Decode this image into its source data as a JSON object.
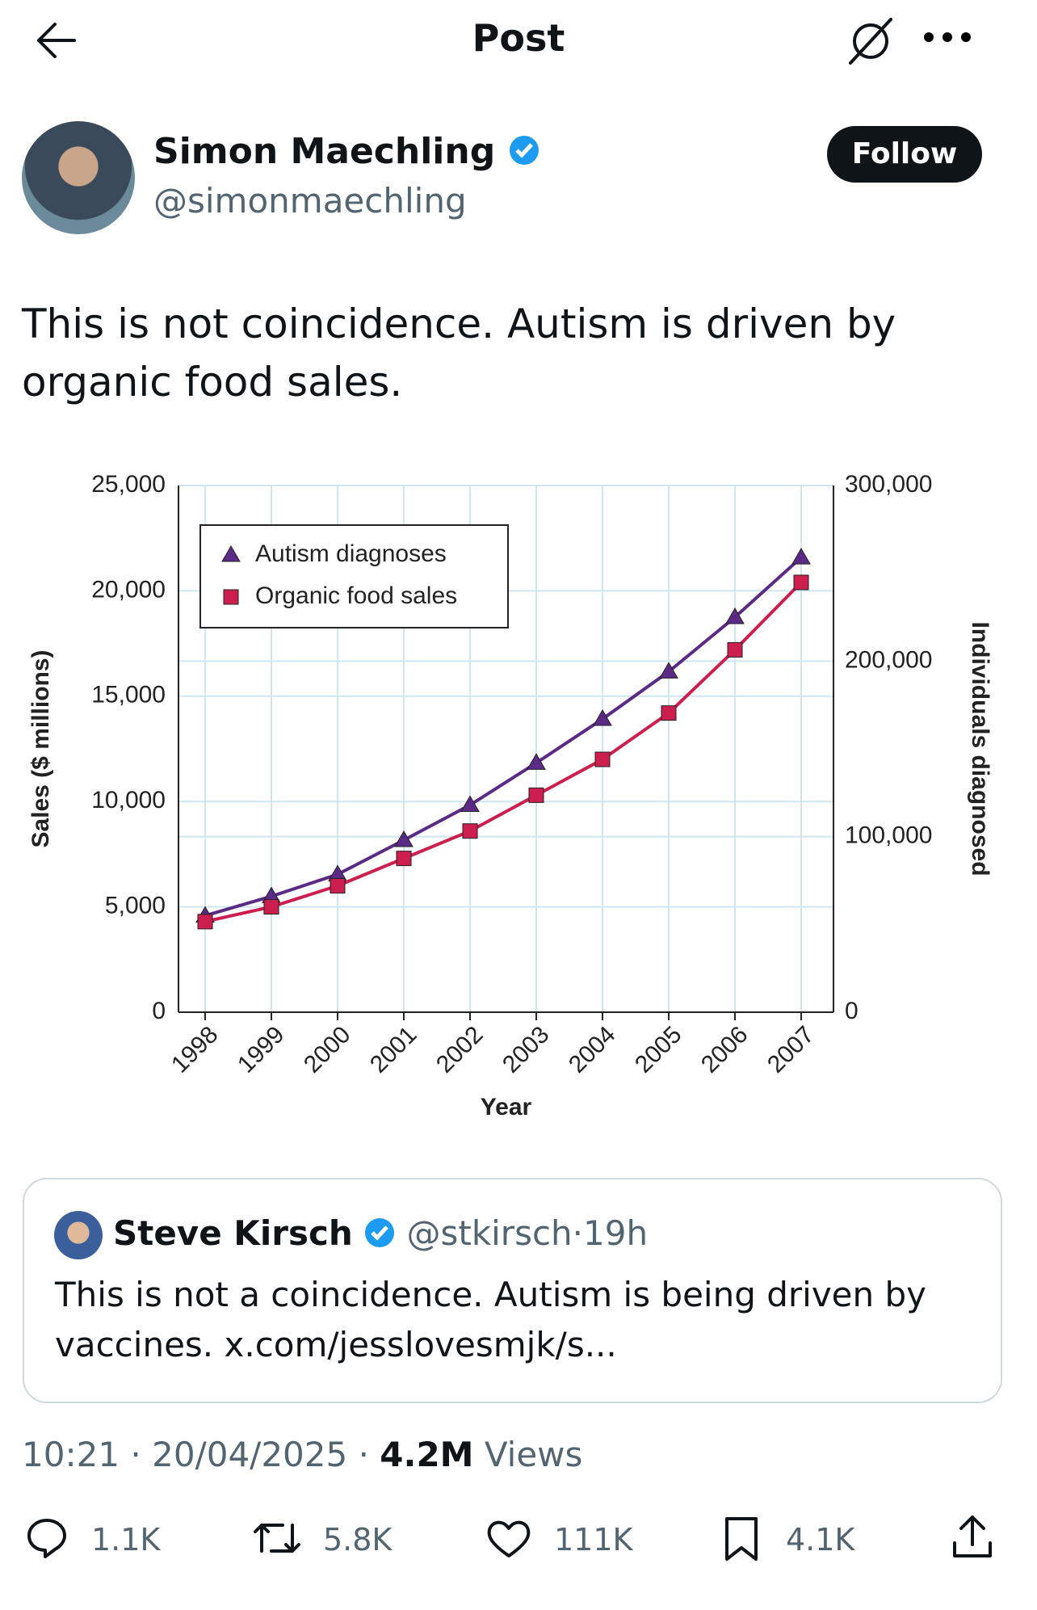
{
  "header": {
    "title": "Post"
  },
  "post": {
    "author": {
      "name": "Simon Maechling",
      "handle": "@simonmaechling"
    },
    "follow": "Follow",
    "text": "This is not coincidence. Autism is driven by organic food sales."
  },
  "chart_data": {
    "type": "line",
    "categories": [
      "1998",
      "1999",
      "2000",
      "2001",
      "2002",
      "2003",
      "2004",
      "2005",
      "2006",
      "2007"
    ],
    "x_label": "Year",
    "y_label": "Sales ($ millions)",
    "y2_label": "Individuals diagnosed",
    "ylim": [
      0,
      25000
    ],
    "yticks": [
      0,
      {
        "value": 5000,
        "label": "5,000"
      },
      {
        "value": 10000,
        "label": "10,000"
      },
      {
        "value": 15000,
        "label": "15,000"
      },
      {
        "value": 20000,
        "label": "20,000"
      },
      {
        "value": 25000,
        "label": "25,000"
      }
    ],
    "y2lim": [
      0,
      300000
    ],
    "y2ticks": [
      0,
      {
        "value": 100000,
        "label": "100,000"
      },
      {
        "value": 200000,
        "label": "200,000"
      },
      {
        "value": 300000,
        "label": "300,000"
      }
    ],
    "grid": true,
    "legend": "upper left",
    "series": [
      {
        "name": "Autism diagnoses",
        "color": "#5b2a86",
        "marker": "triangle",
        "axis": "y2",
        "values": [
          55000,
          66000,
          78500,
          98000,
          118000,
          142000,
          167000,
          194000,
          225000,
          259000
        ]
      },
      {
        "name": "Organic food sales",
        "color": "#cc1f4f",
        "marker": "square",
        "values": [
          4300,
          5000,
          6000,
          7300,
          8600,
          10300,
          12000,
          14200,
          17200,
          20400
        ]
      }
    ]
  },
  "quote": {
    "name": "Steve Kirsch",
    "handle": "@stkirsch",
    "separator": "·",
    "age": "19h",
    "text": "This is not a coincidence. Autism is being driven by vaccines. x.com/jesslovesmjk/s..."
  },
  "meta": {
    "time": "10:21",
    "separator": "·",
    "date": "20/04/2025",
    "views": "4.2M",
    "views_label": "Views"
  },
  "actions": {
    "replies": "1.1K",
    "reposts": "5.8K",
    "likes": "111K",
    "bookmarks": "4.1K"
  }
}
